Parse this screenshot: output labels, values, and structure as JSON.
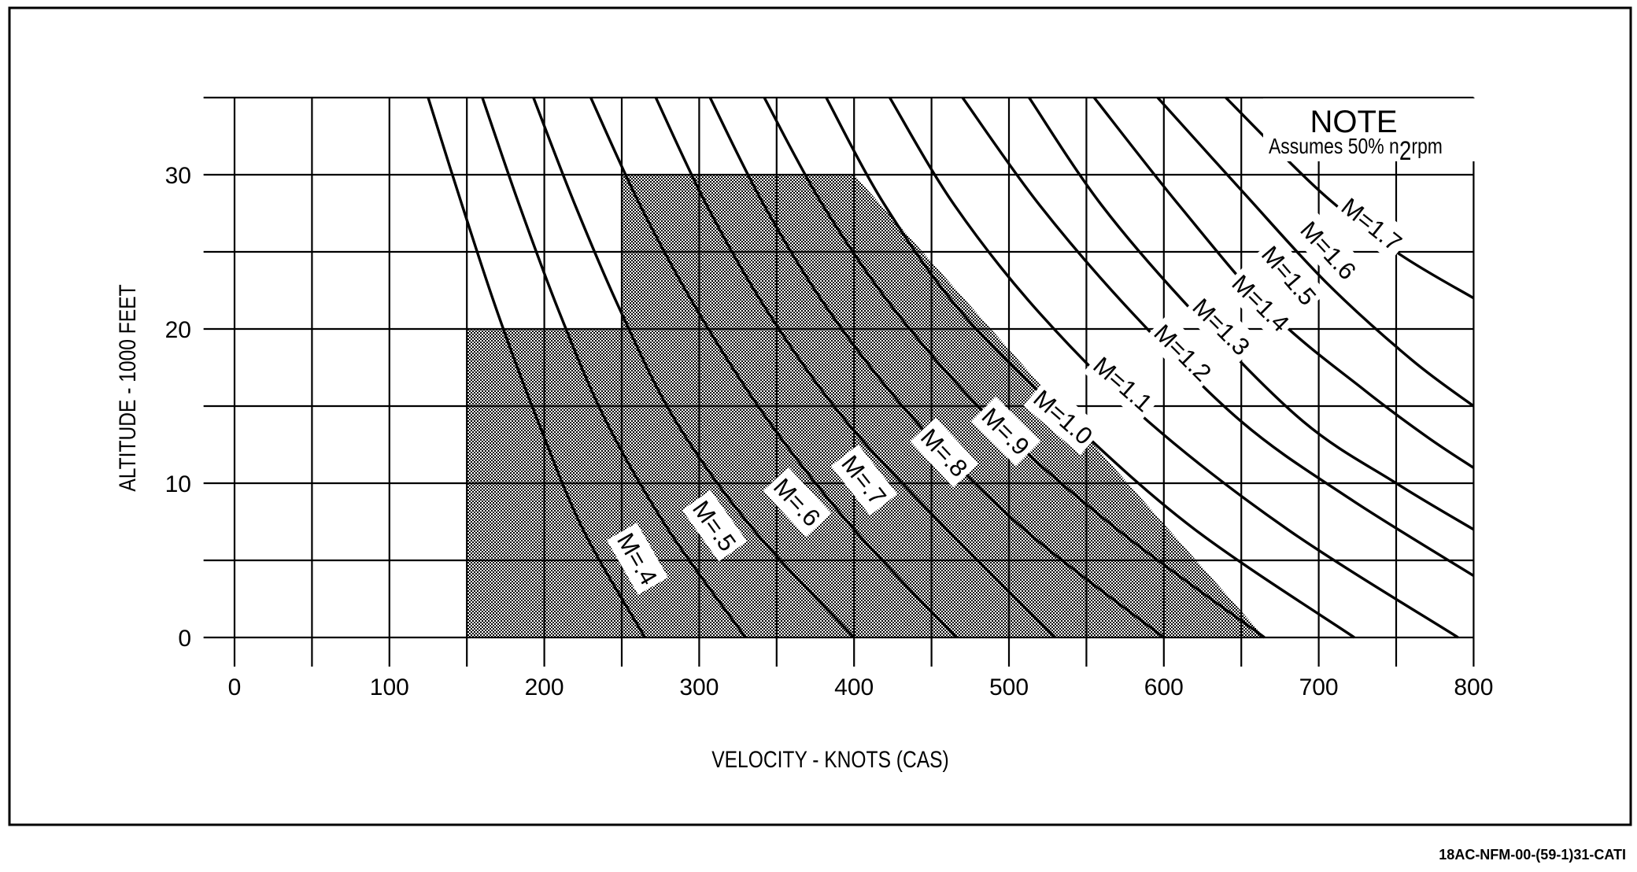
{
  "figure_id": "18AC-NFM-00-(59-1)31-CATI",
  "chart_data": {
    "type": "line",
    "xlabel": "VELOCITY - KNOTS (CAS)",
    "ylabel": "ALTITUDE - 1000 FEET",
    "xlim": [
      -20,
      800
    ],
    "ylim": [
      0,
      35
    ],
    "x_ticks": [
      0,
      100,
      200,
      300,
      400,
      500,
      600,
      700,
      800
    ],
    "y_ticks": [
      0,
      10,
      20,
      30
    ],
    "grid": true,
    "note": {
      "title": "NOTE",
      "text_before": "Assumes 50% n",
      "subscript": "2",
      "text_after": "rpm"
    },
    "shaded_region": {
      "points": [
        [
          150,
          0
        ],
        [
          150,
          20
        ],
        [
          250,
          20
        ],
        [
          250,
          30
        ],
        [
          400,
          30
        ],
        [
          665,
          0
        ]
      ]
    },
    "series": [
      {
        "label": "M=.4",
        "x": [
          125,
          147,
          170,
          196,
          225,
          265
        ],
        "y": [
          35,
          28,
          21,
          14,
          7,
          0
        ]
      },
      {
        "label": "M=.5",
        "x": [
          160,
          184,
          210,
          240,
          280,
          330
        ],
        "y": [
          35,
          28,
          21,
          14,
          7,
          0
        ]
      },
      {
        "label": "M=.6",
        "x": [
          193,
          220,
          250,
          285,
          335,
          400
        ],
        "y": [
          35,
          28,
          21,
          14,
          7,
          0
        ]
      },
      {
        "label": "M=.7",
        "x": [
          230,
          262,
          300,
          345,
          400,
          466
        ],
        "y": [
          35,
          28,
          21,
          14,
          7,
          0
        ]
      },
      {
        "label": "M=.8",
        "x": [
          272,
          305,
          345,
          395,
          460,
          530
        ],
        "y": [
          35,
          28,
          21,
          14,
          7,
          0
        ]
      },
      {
        "label": "M=.9",
        "x": [
          307,
          342,
          385,
          440,
          510,
          600
        ],
        "y": [
          35,
          28,
          21,
          14,
          7,
          0
        ]
      },
      {
        "label": "M=1.0",
        "x": [
          342,
          380,
          428,
          490,
          570,
          665
        ],
        "y": [
          35,
          28,
          21,
          14,
          7,
          0
        ]
      },
      {
        "label": "M=1.1",
        "x": [
          382,
          420,
          470,
          540,
          620,
          723
        ],
        "y": [
          35,
          28,
          21,
          14,
          7,
          0
        ]
      },
      {
        "label": "M=1.2",
        "x": [
          423,
          465,
          520,
          590,
          680,
          790
        ],
        "y": [
          35,
          28,
          21,
          14,
          7,
          0
        ]
      },
      {
        "label": "M=1.3",
        "x": [
          470,
          520,
          580,
          650,
          720,
          800
        ],
        "y": [
          35,
          28,
          21,
          14,
          9,
          4
        ]
      },
      {
        "label": "M=1.4",
        "x": [
          513,
          560,
          620,
          690,
          750,
          800
        ],
        "y": [
          35,
          28,
          21,
          14,
          10,
          7
        ]
      },
      {
        "label": "M=1.5",
        "x": [
          555,
          610,
          670,
          730,
          770,
          800
        ],
        "y": [
          35,
          28,
          21,
          16,
          13,
          11
        ]
      },
      {
        "label": "M=1.6",
        "x": [
          596,
          650,
          705,
          760,
          800
        ],
        "y": [
          35,
          29,
          23,
          18,
          15
        ]
      },
      {
        "label": "M=1.7",
        "x": [
          640,
          700,
          750,
          800
        ],
        "y": [
          35,
          29,
          25,
          22
        ]
      }
    ]
  }
}
